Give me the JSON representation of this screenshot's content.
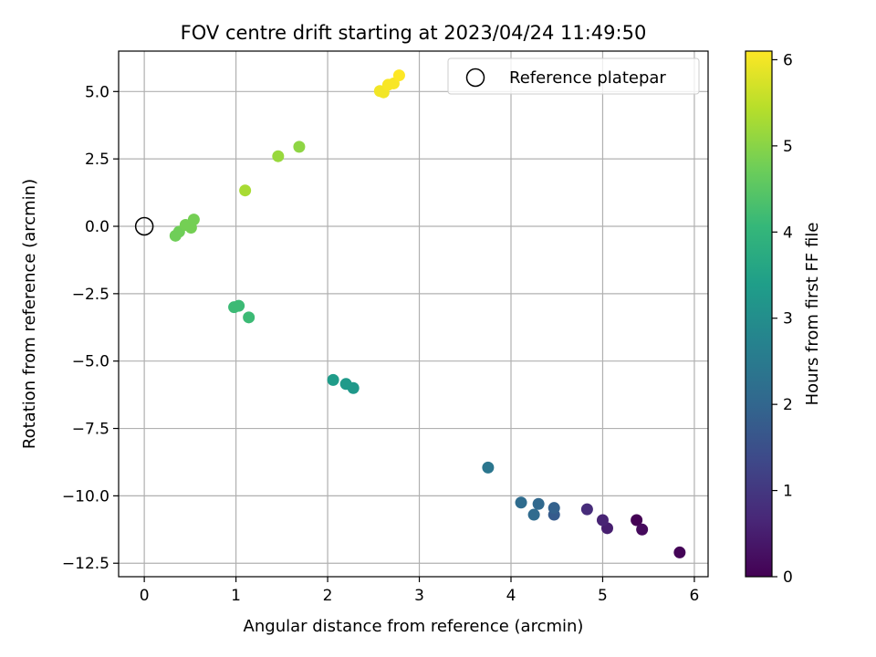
{
  "chart_data": {
    "type": "scatter",
    "title": "FOV centre drift starting at 2023/04/24 11:49:50",
    "xlabel": "Angular distance from reference (arcmin)",
    "ylabel": "Rotation from reference (arcmin)",
    "xlim": [
      -0.28,
      6.15
    ],
    "ylim": [
      -13.0,
      6.5
    ],
    "xticks": [
      0,
      1,
      2,
      3,
      4,
      5,
      6
    ],
    "xtick_labels": [
      "0",
      "1",
      "2",
      "3",
      "4",
      "5",
      "6"
    ],
    "yticks": [
      5.0,
      2.5,
      0.0,
      -2.5,
      -5.0,
      -7.5,
      -10.0,
      -12.5
    ],
    "ytick_labels": [
      "5.0",
      "2.5",
      "0.0",
      "−2.5",
      "−5.0",
      "−7.5",
      "−10.0",
      "−12.5"
    ],
    "grid": true,
    "legend": {
      "placement": "top-right",
      "entries": [
        "Reference platepar"
      ]
    },
    "reference_point": {
      "x": 0.0,
      "y": 0.0
    },
    "colorbar": {
      "label": "Hours from first FF file",
      "range": [
        0,
        6.1
      ],
      "ticks": [
        0,
        1,
        2,
        3,
        4,
        5,
        6
      ],
      "tick_labels": [
        "0",
        "1",
        "2",
        "3",
        "4",
        "5",
        "6"
      ],
      "colormap": [
        "#440154",
        "#482878",
        "#3e4989",
        "#31688e",
        "#26828e",
        "#1f9e89",
        "#35b779",
        "#6ece58",
        "#b5de2b",
        "#fde725"
      ]
    },
    "points": [
      {
        "x": 5.37,
        "y": -10.9,
        "hours": 0.0
      },
      {
        "x": 5.84,
        "y": -12.1,
        "hours": 0.05
      },
      {
        "x": 5.43,
        "y": -11.25,
        "hours": 0.15
      },
      {
        "x": 5.05,
        "y": -11.2,
        "hours": 0.5
      },
      {
        "x": 5.0,
        "y": -10.9,
        "hours": 0.6
      },
      {
        "x": 4.83,
        "y": -10.5,
        "hours": 0.75
      },
      {
        "x": 4.47,
        "y": -10.7,
        "hours": 1.75
      },
      {
        "x": 4.47,
        "y": -10.45,
        "hours": 1.9
      },
      {
        "x": 4.3,
        "y": -10.3,
        "hours": 2.05
      },
      {
        "x": 4.25,
        "y": -10.7,
        "hours": 2.1
      },
      {
        "x": 4.11,
        "y": -10.25,
        "hours": 2.15
      },
      {
        "x": 3.75,
        "y": -8.95,
        "hours": 2.4
      },
      {
        "x": 2.28,
        "y": -6.0,
        "hours": 3.25
      },
      {
        "x": 2.2,
        "y": -5.85,
        "hours": 3.3
      },
      {
        "x": 2.06,
        "y": -5.7,
        "hours": 3.35
      },
      {
        "x": 0.98,
        "y": -3.0,
        "hours": 4.15
      },
      {
        "x": 1.03,
        "y": -2.95,
        "hours": 4.15
      },
      {
        "x": 1.14,
        "y": -3.38,
        "hours": 4.15
      },
      {
        "x": 0.34,
        "y": -0.35,
        "hours": 4.75
      },
      {
        "x": 0.38,
        "y": -0.2,
        "hours": 4.75
      },
      {
        "x": 0.45,
        "y": 0.05,
        "hours": 4.8
      },
      {
        "x": 0.51,
        "y": -0.05,
        "hours": 4.8
      },
      {
        "x": 0.54,
        "y": 0.25,
        "hours": 4.8
      },
      {
        "x": 1.1,
        "y": 1.33,
        "hours": 5.3
      },
      {
        "x": 1.46,
        "y": 2.6,
        "hours": 5.15
      },
      {
        "x": 1.69,
        "y": 2.95,
        "hours": 5.05
      },
      {
        "x": 2.57,
        "y": 5.02,
        "hours": 6.0
      },
      {
        "x": 2.61,
        "y": 4.97,
        "hours": 6.0
      },
      {
        "x": 2.66,
        "y": 5.25,
        "hours": 6.05
      },
      {
        "x": 2.72,
        "y": 5.3,
        "hours": 6.05
      },
      {
        "x": 2.78,
        "y": 5.6,
        "hours": 6.1
      }
    ]
  }
}
